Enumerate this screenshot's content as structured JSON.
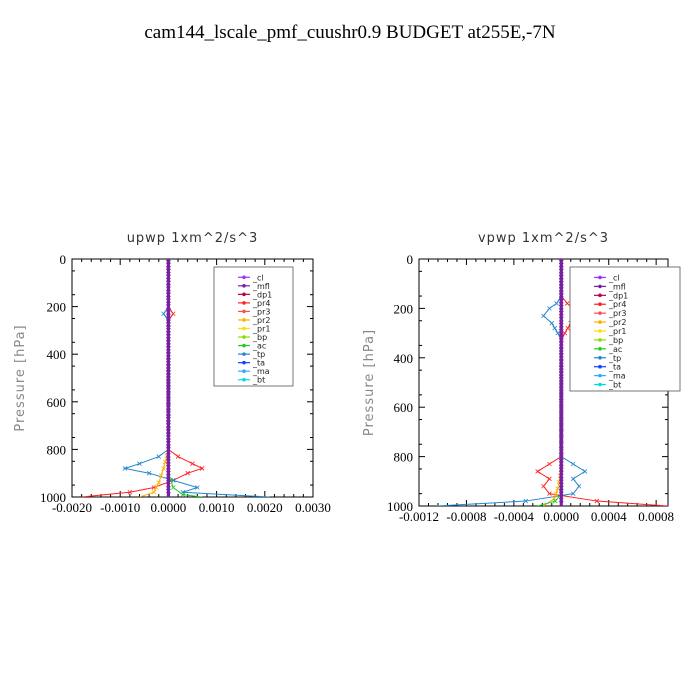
{
  "title": "cam144_lscale_pmf_cuushr0.9  BUDGET at255E,-7N",
  "legend_entries": [
    {
      "name": "_cl",
      "color": "#9933ff"
    },
    {
      "name": "_mfl",
      "color": "#7a1fa2"
    },
    {
      "name": "_dp1",
      "color": "#b5004e"
    },
    {
      "name": "_pr4",
      "color": "#ff2020"
    },
    {
      "name": "_pr3",
      "color": "#ff4d4d"
    },
    {
      "name": "_pr2",
      "color": "#ffb000"
    },
    {
      "name": "_pr1",
      "color": "#ffe000"
    },
    {
      "name": "_bp",
      "color": "#88dd00"
    },
    {
      "name": "_ac",
      "color": "#22cc22"
    },
    {
      "name": "_tp",
      "color": "#2288cc"
    },
    {
      "name": "_ta",
      "color": "#1144ff"
    },
    {
      "name": "_ma",
      "color": "#33aaff"
    },
    {
      "name": "_bt",
      "color": "#00dddd"
    }
  ],
  "chart_data": [
    {
      "type": "line",
      "title": "upwp   1xm^2/s^3",
      "xlabel": "",
      "ylabel": "Pressure  [hPa]",
      "xlim": [
        -0.002,
        0.003
      ],
      "ylim": [
        1000,
        0
      ],
      "xticks": [
        -0.002,
        -0.001,
        0,
        0.001,
        0.002,
        0.003
      ],
      "xtick_labels": [
        "-0.0020",
        "-0.0010",
        "0.0000",
        "0.0010",
        "0.0020",
        "0.0030"
      ],
      "yticks": [
        0,
        200,
        400,
        600,
        800,
        1000
      ],
      "ytick_labels": [
        "0",
        "200",
        "400",
        "600",
        "800",
        "1000"
      ],
      "legend": "top-right",
      "series": [
        {
          "name": "_pr4",
          "p": [
            0,
            200,
            230,
            260,
            800,
            830,
            860,
            880,
            900,
            930,
            960,
            980,
            1000
          ],
          "v": [
            0,
            0,
            0.0001,
            0,
            0,
            0.0002,
            0.0005,
            0.0007,
            0.0004,
            0.0001,
            -0.0003,
            -0.0008,
            -0.0018
          ]
        },
        {
          "name": "_tp",
          "p": [
            0,
            200,
            230,
            260,
            800,
            830,
            860,
            880,
            900,
            930,
            960,
            980,
            1000
          ],
          "v": [
            0,
            0,
            -0.0001,
            0,
            0,
            -0.0002,
            -0.0006,
            -0.0009,
            -0.0004,
            0.0001,
            0.0006,
            0.0003,
            0.0021
          ]
        },
        {
          "name": "_pr2",
          "p": [
            0,
            800,
            880,
            940,
            980,
            1000
          ],
          "v": [
            0,
            0,
            -0.0001,
            -0.0002,
            -0.0003,
            -0.0006
          ]
        },
        {
          "name": "_ac",
          "p": [
            0,
            900,
            960,
            990,
            1000
          ],
          "v": [
            0,
            0,
            0.0001,
            0.0003,
            0.0007
          ]
        },
        {
          "name": "_cl",
          "p": [
            0,
            1000
          ],
          "v": [
            0,
            0
          ]
        },
        {
          "name": "_mfl",
          "p": [
            0,
            1000
          ],
          "v": [
            0,
            0
          ]
        }
      ]
    },
    {
      "type": "line",
      "title": "vpwp   1xm^2/s^3",
      "xlabel": "",
      "ylabel": "Pressure  [hPa]",
      "xlim": [
        -0.0012,
        0.0009
      ],
      "ylim": [
        1000,
        0
      ],
      "xticks": [
        -0.0012,
        -0.0008,
        -0.0004,
        0,
        0.0004,
        0.0008
      ],
      "xtick_labels": [
        "-0.0012",
        "-0.0008",
        "-0.0004",
        "0.0000",
        "0.0004",
        "0.0008"
      ],
      "yticks": [
        0,
        200,
        400,
        600,
        800,
        1000
      ],
      "ytick_labels": [
        "0",
        "200",
        "400",
        "600",
        "800",
        "1000"
      ],
      "legend": "top-right",
      "series": [
        {
          "name": "_pr4",
          "p": [
            0,
            150,
            180,
            200,
            230,
            260,
            300,
            330,
            800,
            830,
            860,
            890,
            920,
            950,
            980,
            1000
          ],
          "v": [
            0,
            0,
            5e-05,
            0.0001,
            0.00015,
            8e-05,
            3e-05,
            0,
            0,
            -0.0001,
            -0.0002,
            -0.0001,
            -0.00015,
            -0.0001,
            0.0003,
            0.0009
          ]
        },
        {
          "name": "_tp",
          "p": [
            0,
            150,
            180,
            200,
            230,
            260,
            300,
            330,
            800,
            830,
            860,
            890,
            920,
            950,
            980,
            1000
          ],
          "v": [
            0,
            0,
            -4e-05,
            -0.0001,
            -0.00015,
            -8e-05,
            -3e-05,
            0,
            0,
            0.0001,
            0.0002,
            0.0001,
            0.00015,
            0.0001,
            -0.0003,
            -0.00105
          ]
        },
        {
          "name": "_pr2",
          "p": [
            0,
            850,
            930,
            970,
            1000
          ],
          "v": [
            0,
            0,
            -3e-05,
            -6e-05,
            -0.00015
          ]
        },
        {
          "name": "_ac",
          "p": [
            0,
            950,
            980,
            1000
          ],
          "v": [
            0,
            0,
            -5e-05,
            -0.0002
          ]
        },
        {
          "name": "_cl",
          "p": [
            0,
            1000
          ],
          "v": [
            0,
            0
          ]
        },
        {
          "name": "_mfl",
          "p": [
            0,
            1000
          ],
          "v": [
            0,
            0
          ]
        }
      ]
    }
  ]
}
